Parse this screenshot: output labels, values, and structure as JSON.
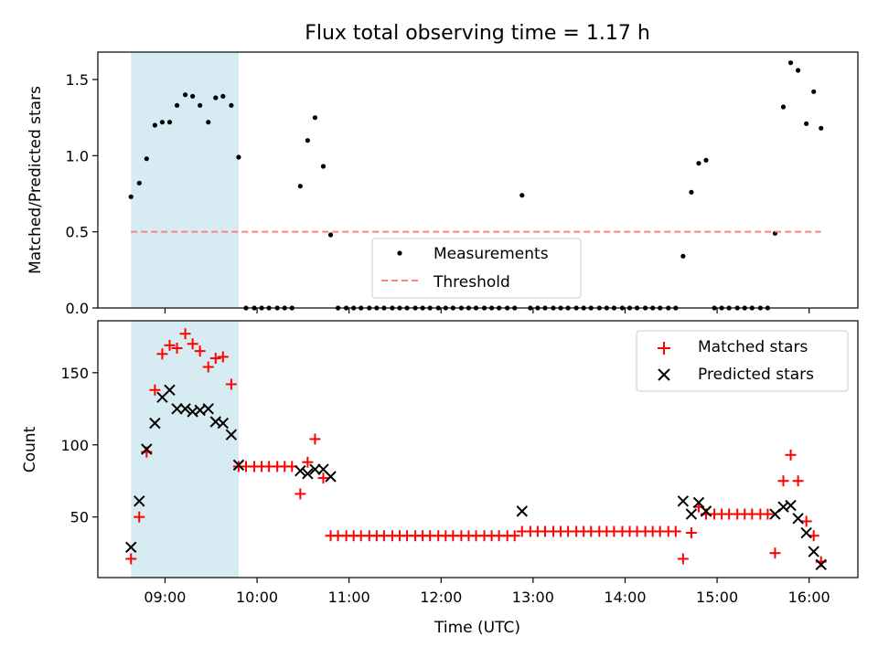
{
  "chart_data": [
    {
      "type": "scatter",
      "title": "Flux total observing time = 1.17 h",
      "xlabel": "",
      "ylabel": "Matched/Predicted stars",
      "xlim": [
        8.27,
        16.53
      ],
      "ylim": [
        0.0,
        1.68
      ],
      "yticks": [
        0.0,
        0.5,
        1.0,
        1.5
      ],
      "ytick_labels": [
        "0.0",
        "0.5",
        "1.0",
        "1.5"
      ],
      "grid": false,
      "legend_position": "bottom-center",
      "shaded_span": {
        "x0": 8.63,
        "x1": 9.8,
        "color": "#add8e6"
      },
      "series": [
        {
          "name": "Measurements",
          "kind": "scatter",
          "color": "#000000",
          "points": [
            [
              8.63,
              0.73
            ],
            [
              8.72,
              0.82
            ],
            [
              8.8,
              0.98
            ],
            [
              8.89,
              1.2
            ],
            [
              8.97,
              1.22
            ],
            [
              9.05,
              1.22
            ],
            [
              9.13,
              1.33
            ],
            [
              9.22,
              1.4
            ],
            [
              9.3,
              1.39
            ],
            [
              9.38,
              1.33
            ],
            [
              9.47,
              1.22
            ],
            [
              9.55,
              1.38
            ],
            [
              9.63,
              1.39
            ],
            [
              9.72,
              1.33
            ],
            [
              9.8,
              0.99
            ],
            [
              9.88,
              0.0
            ],
            [
              9.97,
              0.0
            ],
            [
              10.05,
              0.0
            ],
            [
              10.13,
              0.0
            ],
            [
              10.22,
              0.0
            ],
            [
              10.3,
              0.0
            ],
            [
              10.38,
              0.0
            ],
            [
              10.47,
              0.8
            ],
            [
              10.55,
              1.1
            ],
            [
              10.63,
              1.25
            ],
            [
              10.72,
              0.93
            ],
            [
              10.8,
              0.48
            ],
            [
              10.88,
              0.0
            ],
            [
              10.97,
              0.0
            ],
            [
              11.05,
              0.0
            ],
            [
              11.13,
              0.0
            ],
            [
              11.22,
              0.0
            ],
            [
              11.3,
              0.0
            ],
            [
              11.38,
              0.0
            ],
            [
              11.47,
              0.0
            ],
            [
              11.55,
              0.0
            ],
            [
              11.63,
              0.0
            ],
            [
              11.72,
              0.0
            ],
            [
              11.8,
              0.0
            ],
            [
              11.88,
              0.0
            ],
            [
              11.97,
              0.0
            ],
            [
              12.05,
              0.0
            ],
            [
              12.13,
              0.0
            ],
            [
              12.22,
              0.0
            ],
            [
              12.3,
              0.0
            ],
            [
              12.38,
              0.0
            ],
            [
              12.47,
              0.0
            ],
            [
              12.55,
              0.0
            ],
            [
              12.63,
              0.0
            ],
            [
              12.72,
              0.0
            ],
            [
              12.8,
              0.0
            ],
            [
              12.88,
              0.74
            ],
            [
              12.97,
              0.0
            ],
            [
              13.05,
              0.0
            ],
            [
              13.13,
              0.0
            ],
            [
              13.22,
              0.0
            ],
            [
              13.3,
              0.0
            ],
            [
              13.38,
              0.0
            ],
            [
              13.47,
              0.0
            ],
            [
              13.55,
              0.0
            ],
            [
              13.63,
              0.0
            ],
            [
              13.72,
              0.0
            ],
            [
              13.8,
              0.0
            ],
            [
              13.88,
              0.0
            ],
            [
              13.97,
              0.0
            ],
            [
              14.05,
              0.0
            ],
            [
              14.13,
              0.0
            ],
            [
              14.22,
              0.0
            ],
            [
              14.3,
              0.0
            ],
            [
              14.38,
              0.0
            ],
            [
              14.47,
              0.0
            ],
            [
              14.55,
              0.0
            ],
            [
              14.63,
              0.34
            ],
            [
              14.72,
              0.76
            ],
            [
              14.8,
              0.95
            ],
            [
              14.88,
              0.97
            ],
            [
              14.97,
              0.0
            ],
            [
              15.05,
              0.0
            ],
            [
              15.13,
              0.0
            ],
            [
              15.22,
              0.0
            ],
            [
              15.3,
              0.0
            ],
            [
              15.38,
              0.0
            ],
            [
              15.47,
              0.0
            ],
            [
              15.55,
              0.0
            ],
            [
              15.63,
              0.49
            ],
            [
              15.72,
              1.32
            ],
            [
              15.8,
              1.61
            ],
            [
              15.88,
              1.56
            ],
            [
              15.97,
              1.21
            ],
            [
              16.05,
              1.42
            ],
            [
              16.13,
              1.18
            ]
          ]
        },
        {
          "name": "Threshold",
          "kind": "line",
          "style": "dashed",
          "color": "#ff8080",
          "points": [
            [
              8.63,
              0.5
            ],
            [
              16.13,
              0.5
            ]
          ]
        }
      ]
    },
    {
      "type": "scatter",
      "title": "",
      "xlabel": "Time (UTC)",
      "ylabel": "Count",
      "xlim": [
        8.27,
        16.53
      ],
      "ylim": [
        8,
        186
      ],
      "xticks": [
        9,
        10,
        11,
        12,
        13,
        14,
        15,
        16
      ],
      "xtick_labels": [
        "09:00",
        "10:00",
        "11:00",
        "12:00",
        "13:00",
        "14:00",
        "15:00",
        "16:00"
      ],
      "yticks": [
        50,
        100,
        150
      ],
      "ytick_labels": [
        "50",
        "100",
        "150"
      ],
      "grid": false,
      "legend_position": "top-right",
      "shaded_span": {
        "x0": 8.63,
        "x1": 9.8,
        "color": "#add8e6"
      },
      "series": [
        {
          "name": "Matched stars",
          "marker": "plus",
          "color": "#ff0000",
          "points": [
            [
              8.63,
              21
            ],
            [
              8.72,
              50
            ],
            [
              8.8,
              95
            ],
            [
              8.89,
              138
            ],
            [
              8.97,
              163
            ],
            [
              9.05,
              169
            ],
            [
              9.13,
              167
            ],
            [
              9.22,
              177
            ],
            [
              9.3,
              170
            ],
            [
              9.38,
              165
            ],
            [
              9.47,
              154
            ],
            [
              9.55,
              160
            ],
            [
              9.63,
              161
            ],
            [
              9.72,
              142
            ],
            [
              9.8,
              85
            ],
            [
              9.88,
              85
            ],
            [
              9.97,
              85
            ],
            [
              10.05,
              85
            ],
            [
              10.13,
              85
            ],
            [
              10.22,
              85
            ],
            [
              10.3,
              85
            ],
            [
              10.38,
              85
            ],
            [
              10.47,
              66
            ],
            [
              10.55,
              88
            ],
            [
              10.63,
              104
            ],
            [
              10.72,
              77
            ],
            [
              10.8,
              37
            ],
            [
              10.88,
              37
            ],
            [
              10.97,
              37
            ],
            [
              11.05,
              37
            ],
            [
              11.13,
              37
            ],
            [
              11.22,
              37
            ],
            [
              11.3,
              37
            ],
            [
              11.38,
              37
            ],
            [
              11.47,
              37
            ],
            [
              11.55,
              37
            ],
            [
              11.63,
              37
            ],
            [
              11.72,
              37
            ],
            [
              11.8,
              37
            ],
            [
              11.88,
              37
            ],
            [
              11.97,
              37
            ],
            [
              12.05,
              37
            ],
            [
              12.13,
              37
            ],
            [
              12.22,
              37
            ],
            [
              12.3,
              37
            ],
            [
              12.38,
              37
            ],
            [
              12.47,
              37
            ],
            [
              12.55,
              37
            ],
            [
              12.63,
              37
            ],
            [
              12.72,
              37
            ],
            [
              12.8,
              37
            ],
            [
              12.88,
              40
            ],
            [
              12.97,
              40
            ],
            [
              13.05,
              40
            ],
            [
              13.13,
              40
            ],
            [
              13.22,
              40
            ],
            [
              13.3,
              40
            ],
            [
              13.38,
              40
            ],
            [
              13.47,
              40
            ],
            [
              13.55,
              40
            ],
            [
              13.63,
              40
            ],
            [
              13.72,
              40
            ],
            [
              13.8,
              40
            ],
            [
              13.88,
              40
            ],
            [
              13.97,
              40
            ],
            [
              14.05,
              40
            ],
            [
              14.13,
              40
            ],
            [
              14.22,
              40
            ],
            [
              14.3,
              40
            ],
            [
              14.38,
              40
            ],
            [
              14.47,
              40
            ],
            [
              14.55,
              40
            ],
            [
              14.63,
              21
            ],
            [
              14.72,
              39
            ],
            [
              14.8,
              57
            ],
            [
              14.88,
              52
            ],
            [
              14.97,
              52
            ],
            [
              15.05,
              52
            ],
            [
              15.13,
              52
            ],
            [
              15.22,
              52
            ],
            [
              15.3,
              52
            ],
            [
              15.38,
              52
            ],
            [
              15.47,
              52
            ],
            [
              15.55,
              52
            ],
            [
              15.63,
              25
            ],
            [
              15.72,
              75
            ],
            [
              15.8,
              93
            ],
            [
              15.88,
              75
            ],
            [
              15.97,
              47
            ],
            [
              16.05,
              37
            ],
            [
              16.13,
              19
            ]
          ]
        },
        {
          "name": "Predicted stars",
          "marker": "x",
          "color": "#000000",
          "points": [
            [
              8.63,
              29
            ],
            [
              8.72,
              61
            ],
            [
              8.8,
              97
            ],
            [
              8.89,
              115
            ],
            [
              8.97,
              133
            ],
            [
              9.05,
              138
            ],
            [
              9.13,
              125
            ],
            [
              9.22,
              125
            ],
            [
              9.3,
              123
            ],
            [
              9.38,
              124
            ],
            [
              9.47,
              125
            ],
            [
              9.55,
              116
            ],
            [
              9.63,
              115
            ],
            [
              9.72,
              107
            ],
            [
              9.8,
              86
            ],
            [
              10.47,
              82
            ],
            [
              10.55,
              80
            ],
            [
              10.63,
              83
            ],
            [
              10.72,
              83
            ],
            [
              10.8,
              78
            ],
            [
              12.88,
              54
            ],
            [
              14.63,
              61
            ],
            [
              14.72,
              52
            ],
            [
              14.8,
              60
            ],
            [
              14.88,
              54
            ],
            [
              15.63,
              52
            ],
            [
              15.72,
              57
            ],
            [
              15.8,
              58
            ],
            [
              15.88,
              49
            ],
            [
              15.97,
              39
            ],
            [
              16.05,
              26
            ],
            [
              16.13,
              17
            ]
          ]
        }
      ]
    }
  ]
}
